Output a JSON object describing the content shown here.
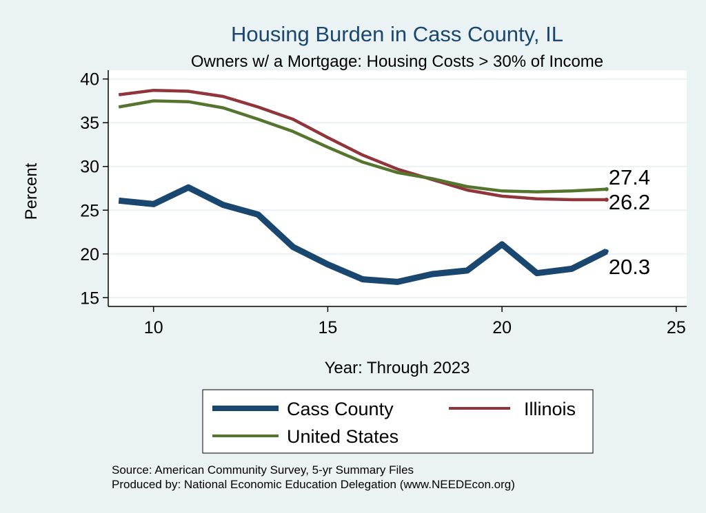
{
  "colors": {
    "background": "#eaf2f3",
    "plot_background": "#ffffff",
    "grid": "#eaf2f3",
    "title": "#1a476f",
    "cass_county": "#1a476f",
    "illinois": "#90353b",
    "united_states": "#55752f"
  },
  "chart_data": {
    "type": "line",
    "title": "Housing Burden in Cass County, IL",
    "subtitle": "Owners w/ a Mortgage: Housing Costs > 30% of Income",
    "xlabel": "Year: Through 2023",
    "ylabel": "Percent",
    "xlim": [
      8.7,
      25.3
    ],
    "ylim": [
      14,
      41
    ],
    "xticks": [
      10,
      15,
      20,
      25
    ],
    "yticks": [
      15,
      20,
      25,
      30,
      35,
      40
    ],
    "grid": true,
    "legend_position": "bottom",
    "series": [
      {
        "name": "Cass County",
        "color": "#1a476f",
        "x": [
          9,
          10,
          11,
          12,
          13,
          14,
          15,
          16,
          17,
          18,
          19,
          20,
          21,
          22,
          23
        ],
        "y": [
          26.1,
          25.7,
          27.6,
          25.6,
          24.5,
          20.8,
          18.8,
          17.1,
          16.8,
          17.7,
          18.1,
          21.1,
          17.8,
          18.3,
          20.3
        ],
        "end_label": "20.3"
      },
      {
        "name": "Illinois",
        "color": "#90353b",
        "x": [
          9,
          10,
          11,
          12,
          13,
          14,
          15,
          16,
          17,
          18,
          19,
          20,
          21,
          22,
          23
        ],
        "y": [
          38.2,
          38.7,
          38.6,
          38.0,
          36.8,
          35.4,
          33.3,
          31.3,
          29.7,
          28.5,
          27.3,
          26.6,
          26.3,
          26.2,
          26.2
        ],
        "end_label": "26.2"
      },
      {
        "name": "United States",
        "color": "#55752f",
        "x": [
          9,
          10,
          11,
          12,
          13,
          14,
          15,
          16,
          17,
          18,
          19,
          20,
          21,
          22,
          23
        ],
        "y": [
          36.8,
          37.5,
          37.4,
          36.7,
          35.4,
          34.0,
          32.2,
          30.5,
          29.3,
          28.6,
          27.7,
          27.2,
          27.1,
          27.2,
          27.4
        ],
        "end_label": "27.4"
      }
    ],
    "notes": [
      "Source: American Community Survey, 5-yr Summary Files",
      "Produced by: National Economic Education Delegation (www.NEEDEcon.org)"
    ]
  }
}
